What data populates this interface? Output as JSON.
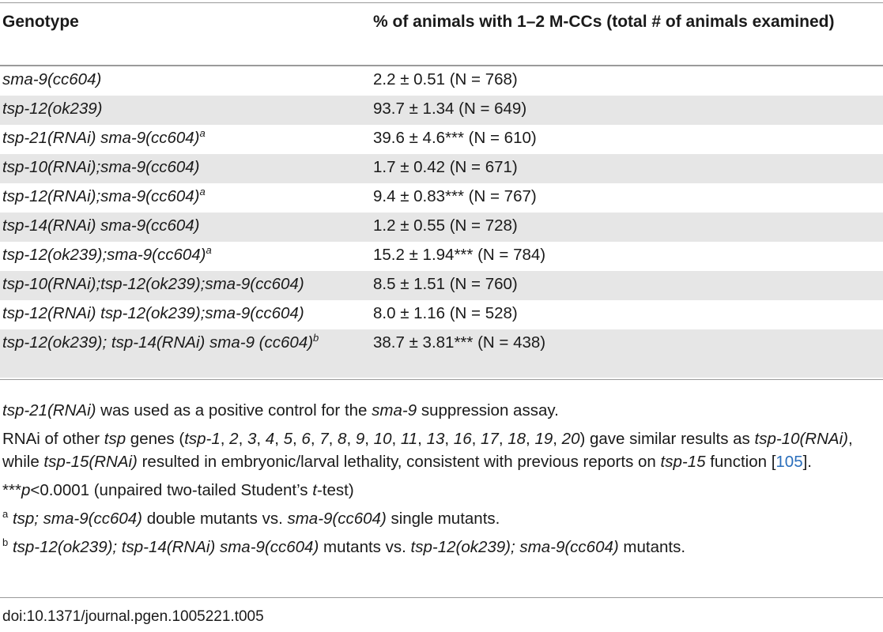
{
  "table": {
    "col_headers": [
      "Genotype",
      "% of animals with 1–2 M-CCs (total # of animals examined)"
    ],
    "rows": [
      {
        "genotype": "sma-9(cc604)",
        "sup": "",
        "value": "2.2 ± 0.51 (N = 768)"
      },
      {
        "genotype": "tsp-12(ok239)",
        "sup": "",
        "value": "93.7 ± 1.34 (N = 649)"
      },
      {
        "genotype": "tsp-21(RNAi) sma-9(cc604)",
        "sup": "a",
        "value": "39.6 ± 4.6*** (N = 610)"
      },
      {
        "genotype": "tsp-10(RNAi);sma-9(cc604)",
        "sup": "",
        "value": "1.7 ± 0.42 (N = 671)"
      },
      {
        "genotype": "tsp-12(RNAi);sma-9(cc604)",
        "sup": "a",
        "value": "9.4 ± 0.83*** (N = 767)"
      },
      {
        "genotype": "tsp-14(RNAi) sma-9(cc604)",
        "sup": "",
        "value": "1.2 ± 0.55 (N = 728)"
      },
      {
        "genotype": "tsp-12(ok239);sma-9(cc604)",
        "sup": "a",
        "value": "15.2 ± 1.94*** (N = 784)"
      },
      {
        "genotype": "tsp-10(RNAi);tsp-12(ok239);sma-9(cc604)",
        "sup": "",
        "value": "8.5 ± 1.51 (N = 760)"
      },
      {
        "genotype": "tsp-12(RNAi) tsp-12(ok239);sma-9(cc604)",
        "sup": "",
        "value": "8.0 ± 1.16 (N = 528)"
      },
      {
        "genotype": "tsp-12(ok239); tsp-14(RNAi) sma-9 (cc604)",
        "sup": "b",
        "value": "38.7 ± 3.81*** (N = 438)"
      }
    ]
  },
  "notes": {
    "n1": {
      "a": "tsp-21(RNAi)",
      "b": " was used as a positive control for the ",
      "c": "sma-9",
      "d": " suppression assay."
    },
    "n2": {
      "a": "RNAi of other ",
      "b": "tsp",
      "c": " genes (",
      "list": [
        "tsp-1",
        "2",
        "3",
        "4",
        "5",
        "6",
        "7",
        "8",
        "9",
        "10",
        "11",
        "13",
        "16",
        "17",
        "18",
        "19",
        "20"
      ],
      "d": ") gave similar results as ",
      "e": "tsp-10(RNAi)",
      "f": ", while ",
      "g": "tsp-15(RNAi)",
      "h": " resulted in embryonic/larval lethality, consistent with previous reports on ",
      "i": "tsp-15",
      "j": " function [",
      "ref": "105",
      "k": "]."
    },
    "n3": {
      "a": "***",
      "b": "p",
      "c": "<0.0001 (unpaired two-tailed Student’s ",
      "d": "t",
      "e": "-test)"
    },
    "n4": {
      "sup": "a",
      "a": "tsp; sma-9(cc604)",
      "b": " double mutants vs. ",
      "c": "sma-9(cc604)",
      "d": " single mutants."
    },
    "n5": {
      "sup": "b",
      "a": "tsp-12(ok239); tsp-14(RNAi) sma-9(cc604)",
      "b": " mutants vs. ",
      "c": "tsp-12(ok239); sma-9(cc604)",
      "d": " mutants."
    }
  },
  "doi": "doi:10.1371/journal.pgen.1005221.t005",
  "colors": {
    "row_shade": "#e6e6e6",
    "rule": "#9a9a9a",
    "link": "#2a6ebb"
  }
}
